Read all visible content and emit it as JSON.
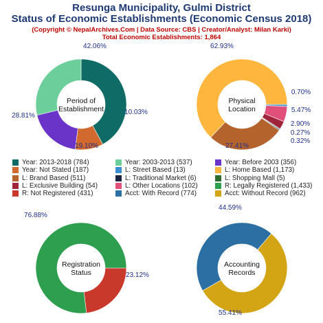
{
  "header": {
    "title_line1": "Resunga Municipality, Gulmi District",
    "title_line2": "Status of Economic Establishments (Economic Census 2018)",
    "credit": "(Copyright © NepalArchives.Com | Data Source: CBS | Creator/Analyst: Milan Karki)",
    "total": "Total Economic Establishments: 1,864"
  },
  "chart_data": [
    {
      "type": "pie",
      "center_label": [
        "Period of",
        "Establishment"
      ],
      "slices": [
        {
          "name": "Year: 2013-2018",
          "value": 784,
          "color": "#0f6b66",
          "pct_label": "42.06%"
        },
        {
          "name": "Year: Not Stated",
          "value": 187,
          "color": "#d2692e",
          "pct_label": "10.03%"
        },
        {
          "name": "Year: Before 2003",
          "value": 356,
          "color": "#6b34c9",
          "pct_label": "19.10%"
        },
        {
          "name": "Year: 2003-2013",
          "value": 537,
          "color": "#6ccf9b",
          "pct_label": "28.81%"
        }
      ]
    },
    {
      "type": "pie",
      "center_label": [
        "Physical",
        "Location"
      ],
      "slices": [
        {
          "name": "L: Street Based",
          "value": 13,
          "color": "#3a8fd0",
          "pct_label": "0.70%"
        },
        {
          "name": "L: Other Locations",
          "value": 102,
          "color": "#e0507a",
          "pct_label": "5.47%"
        },
        {
          "name": "L: Exclusive Building",
          "value": 54,
          "color": "#a0243c",
          "pct_label": "2.90%"
        },
        {
          "name": "L: Shopping Mall",
          "value": 5,
          "color": "#2e6b2e",
          "pct_label": "0.27%"
        },
        {
          "name": "L: Traditional Market",
          "value": 6,
          "color": "#1a2440",
          "pct_label": "0.32%"
        },
        {
          "name": "L: Brand Based",
          "value": 511,
          "color": "#b5632c",
          "pct_label": "27.41%"
        },
        {
          "name": "L: Home Based",
          "value": 1173,
          "color": "#ffb63f",
          "pct_label": "62.93%"
        }
      ]
    },
    {
      "type": "pie",
      "center_label": [
        "Registration",
        "Status"
      ],
      "slices": [
        {
          "name": "R: Not Registered",
          "value": 431,
          "color": "#c8392b",
          "pct_label": "23.12%"
        },
        {
          "name": "R: Legally Registered",
          "value": 1433,
          "color": "#2e9e4f",
          "pct_label": "76.88%"
        }
      ]
    },
    {
      "type": "pie",
      "center_label": [
        "Accounting",
        "Records"
      ],
      "slices": [
        {
          "name": "Acct: With Record",
          "value": 774,
          "color": "#2b6fa3",
          "pct_label": "44.59%"
        },
        {
          "name": "Acct: Without Record",
          "value": 962,
          "color": "#d3a514",
          "pct_label": "55.41%"
        }
      ]
    }
  ],
  "legend": [
    {
      "label": "Year: 2013-2018 (784)",
      "color": "#0f6b66"
    },
    {
      "label": "Year: 2003-2013 (537)",
      "color": "#6ccf9b"
    },
    {
      "label": "Year: Before 2003 (356)",
      "color": "#6b34c9"
    },
    {
      "label": "Year: Not Stated (187)",
      "color": "#d2692e"
    },
    {
      "label": "L: Street Based (13)",
      "color": "#3a8fd0"
    },
    {
      "label": "L: Home Based (1,173)",
      "color": "#ffb63f"
    },
    {
      "label": "L: Brand Based (511)",
      "color": "#b5632c"
    },
    {
      "label": "L: Traditional Market (6)",
      "color": "#1a2440"
    },
    {
      "label": "L: Shopping Mall (5)",
      "color": "#2e6b2e"
    },
    {
      "label": "L: Exclusive Building (54)",
      "color": "#a0243c"
    },
    {
      "label": "L: Other Locations (102)",
      "color": "#e0507a"
    },
    {
      "label": "R: Legally Registered (1,433)",
      "color": "#2e9e4f"
    },
    {
      "label": "R: Not Registered (431)",
      "color": "#c8392b"
    },
    {
      "label": "Acct: With Record (774)",
      "color": "#2b6fa3"
    },
    {
      "label": "Acct: Without Record (962)",
      "color": "#d3a514"
    }
  ]
}
